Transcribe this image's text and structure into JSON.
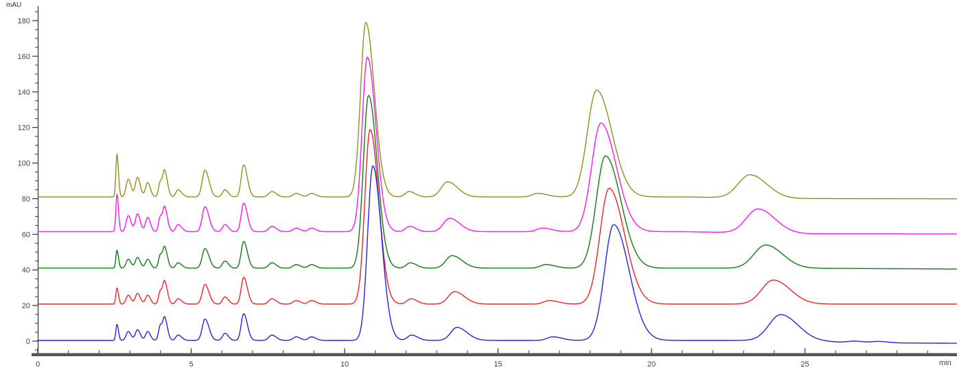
{
  "chart_data": {
    "type": "line",
    "title": "",
    "subtitle": "",
    "ylabel": "mAU",
    "xlabel": "min",
    "grid": false,
    "legend": "none",
    "plot_bg": "#ffffff",
    "axis_color": "#333333",
    "x_axis_bar_color": "#555555",
    "x_axis": {
      "min": 0,
      "max": 29.95,
      "major_ticks": [
        0,
        5,
        10,
        15,
        20,
        25
      ],
      "tick_labels": [
        "0",
        "5",
        "10",
        "15",
        "20",
        "25"
      ],
      "minor_step": 1,
      "unit": "min"
    },
    "y_axis": {
      "min": -8,
      "max": 188,
      "major_ticks": [
        0,
        20,
        40,
        60,
        80,
        100,
        120,
        140,
        160,
        180
      ],
      "tick_labels": [
        "0",
        "20",
        "40",
        "60",
        "80",
        "100",
        "120",
        "140",
        "160",
        "180"
      ],
      "minor_step": 5,
      "unit": "mAU"
    },
    "peak_format": "[retention_time_min, height_mAU_above_baseline, sigma_left_min, sigma_right_min]",
    "sample_step": 0.015,
    "series": [
      {
        "name": "trace-olive",
        "color": "#8F8F1E",
        "baseline": 81,
        "drift": [
          [
            0,
            0
          ],
          [
            21,
            0
          ],
          [
            24.5,
            -0.9
          ],
          [
            29.95,
            -1.1
          ]
        ],
        "peaks": [
          [
            2.58,
            24,
            0.035,
            0.05
          ],
          [
            2.95,
            10,
            0.07,
            0.09
          ],
          [
            3.25,
            11,
            0.07,
            0.09
          ],
          [
            3.58,
            8,
            0.07,
            0.09
          ],
          [
            3.99,
            8,
            0.055,
            0.055
          ],
          [
            4.13,
            15,
            0.06,
            0.09
          ],
          [
            4.57,
            4,
            0.07,
            0.12
          ],
          [
            5.45,
            15,
            0.09,
            0.13
          ],
          [
            6.1,
            4,
            0.08,
            0.11
          ],
          [
            6.71,
            18,
            0.08,
            0.12
          ],
          [
            7.63,
            3,
            0.1,
            0.14
          ],
          [
            8.42,
            2,
            0.1,
            0.14
          ],
          [
            8.92,
            2,
            0.1,
            0.14
          ],
          [
            10.69,
            98,
            0.17,
            0.28
          ],
          [
            12.1,
            3,
            0.13,
            0.2
          ],
          [
            13.35,
            8.5,
            0.2,
            0.33
          ],
          [
            16.3,
            2,
            0.18,
            0.3
          ],
          [
            18.21,
            60,
            0.3,
            0.5
          ],
          [
            23.21,
            13,
            0.38,
            0.55
          ]
        ]
      },
      {
        "name": "trace-magenta",
        "color": "#FF14FF",
        "baseline": 61.5,
        "drift": [
          [
            0,
            0
          ],
          [
            21,
            0
          ],
          [
            25,
            -1.2
          ],
          [
            29.95,
            -1.3
          ]
        ],
        "peaks": [
          [
            2.58,
            21,
            0.035,
            0.05
          ],
          [
            2.95,
            9,
            0.07,
            0.09
          ],
          [
            3.25,
            10,
            0.07,
            0.09
          ],
          [
            3.58,
            8,
            0.07,
            0.09
          ],
          [
            3.99,
            8,
            0.055,
            0.055
          ],
          [
            4.13,
            14,
            0.06,
            0.09
          ],
          [
            4.57,
            4,
            0.07,
            0.12
          ],
          [
            5.45,
            14,
            0.09,
            0.13
          ],
          [
            6.1,
            4,
            0.08,
            0.11
          ],
          [
            6.71,
            16,
            0.08,
            0.12
          ],
          [
            7.63,
            3,
            0.1,
            0.14
          ],
          [
            8.42,
            2,
            0.1,
            0.14
          ],
          [
            8.92,
            2,
            0.1,
            0.14
          ],
          [
            10.74,
            98,
            0.17,
            0.28
          ],
          [
            12.12,
            3,
            0.13,
            0.2
          ],
          [
            13.42,
            7.5,
            0.2,
            0.33
          ],
          [
            16.45,
            2,
            0.18,
            0.3
          ],
          [
            18.35,
            61,
            0.3,
            0.5
          ],
          [
            23.47,
            13.5,
            0.38,
            0.55
          ]
        ]
      },
      {
        "name": "trace-green",
        "color": "#0E7D0E",
        "baseline": 41,
        "drift": [
          [
            0,
            0
          ],
          [
            24,
            0
          ],
          [
            29.95,
            -0.5
          ]
        ],
        "peaks": [
          [
            2.58,
            10,
            0.035,
            0.05
          ],
          [
            2.95,
            5,
            0.07,
            0.09
          ],
          [
            3.25,
            6,
            0.07,
            0.09
          ],
          [
            3.58,
            5,
            0.07,
            0.09
          ],
          [
            3.99,
            7,
            0.055,
            0.055
          ],
          [
            4.13,
            12,
            0.06,
            0.09
          ],
          [
            4.57,
            3,
            0.07,
            0.12
          ],
          [
            5.45,
            11,
            0.09,
            0.13
          ],
          [
            6.1,
            4,
            0.08,
            0.11
          ],
          [
            6.71,
            15,
            0.08,
            0.12
          ],
          [
            7.63,
            3,
            0.1,
            0.14
          ],
          [
            8.42,
            2,
            0.1,
            0.14
          ],
          [
            8.92,
            2,
            0.1,
            0.14
          ],
          [
            10.78,
            97,
            0.17,
            0.28
          ],
          [
            12.14,
            3,
            0.13,
            0.2
          ],
          [
            13.5,
            7,
            0.2,
            0.33
          ],
          [
            16.56,
            2,
            0.18,
            0.3
          ],
          [
            18.5,
            63,
            0.3,
            0.5
          ],
          [
            23.72,
            13,
            0.38,
            0.55
          ]
        ]
      },
      {
        "name": "trace-red",
        "color": "#F52222",
        "baseline": 20.8,
        "drift": [
          [
            0,
            0
          ],
          [
            29.95,
            0
          ]
        ],
        "peaks": [
          [
            2.58,
            9,
            0.035,
            0.05
          ],
          [
            2.95,
            5,
            0.07,
            0.09
          ],
          [
            3.25,
            6,
            0.07,
            0.09
          ],
          [
            3.58,
            5,
            0.07,
            0.09
          ],
          [
            3.99,
            7,
            0.055,
            0.055
          ],
          [
            4.13,
            13,
            0.06,
            0.09
          ],
          [
            4.57,
            3,
            0.07,
            0.12
          ],
          [
            5.45,
            11,
            0.09,
            0.13
          ],
          [
            6.1,
            4,
            0.08,
            0.11
          ],
          [
            6.71,
            15,
            0.08,
            0.12
          ],
          [
            7.63,
            3,
            0.1,
            0.14
          ],
          [
            8.42,
            2,
            0.1,
            0.14
          ],
          [
            8.92,
            2,
            0.1,
            0.14
          ],
          [
            10.83,
            98,
            0.17,
            0.28
          ],
          [
            12.16,
            3,
            0.13,
            0.2
          ],
          [
            13.58,
            7,
            0.2,
            0.33
          ],
          [
            16.67,
            2,
            0.18,
            0.3
          ],
          [
            18.62,
            65,
            0.3,
            0.5
          ],
          [
            23.97,
            13.5,
            0.38,
            0.55
          ]
        ]
      },
      {
        "name": "trace-blue",
        "color": "#2121F0",
        "baseline": 0.4,
        "drift": [
          [
            0,
            0
          ],
          [
            25,
            0
          ],
          [
            26.5,
            -1.3
          ],
          [
            29.95,
            -1.6
          ]
        ],
        "peaks": [
          [
            2.58,
            9,
            0.035,
            0.05
          ],
          [
            2.95,
            5,
            0.07,
            0.09
          ],
          [
            3.25,
            6,
            0.07,
            0.09
          ],
          [
            3.58,
            5,
            0.07,
            0.09
          ],
          [
            3.99,
            8,
            0.055,
            0.055
          ],
          [
            4.13,
            13,
            0.06,
            0.09
          ],
          [
            4.57,
            3,
            0.07,
            0.12
          ],
          [
            5.45,
            12,
            0.09,
            0.13
          ],
          [
            6.1,
            4,
            0.08,
            0.11
          ],
          [
            6.71,
            15,
            0.08,
            0.12
          ],
          [
            7.63,
            3,
            0.1,
            0.14
          ],
          [
            8.42,
            2,
            0.1,
            0.14
          ],
          [
            8.92,
            2,
            0.1,
            0.14
          ],
          [
            10.92,
            98,
            0.17,
            0.28
          ],
          [
            12.18,
            3,
            0.13,
            0.2
          ],
          [
            13.66,
            7.3,
            0.2,
            0.33
          ],
          [
            16.78,
            2,
            0.18,
            0.3
          ],
          [
            18.77,
            65,
            0.3,
            0.5
          ],
          [
            24.21,
            14.5,
            0.38,
            0.55
          ],
          [
            26.6,
            0.9,
            0.22,
            0.3
          ],
          [
            27.4,
            0.8,
            0.22,
            0.3
          ]
        ]
      }
    ]
  }
}
